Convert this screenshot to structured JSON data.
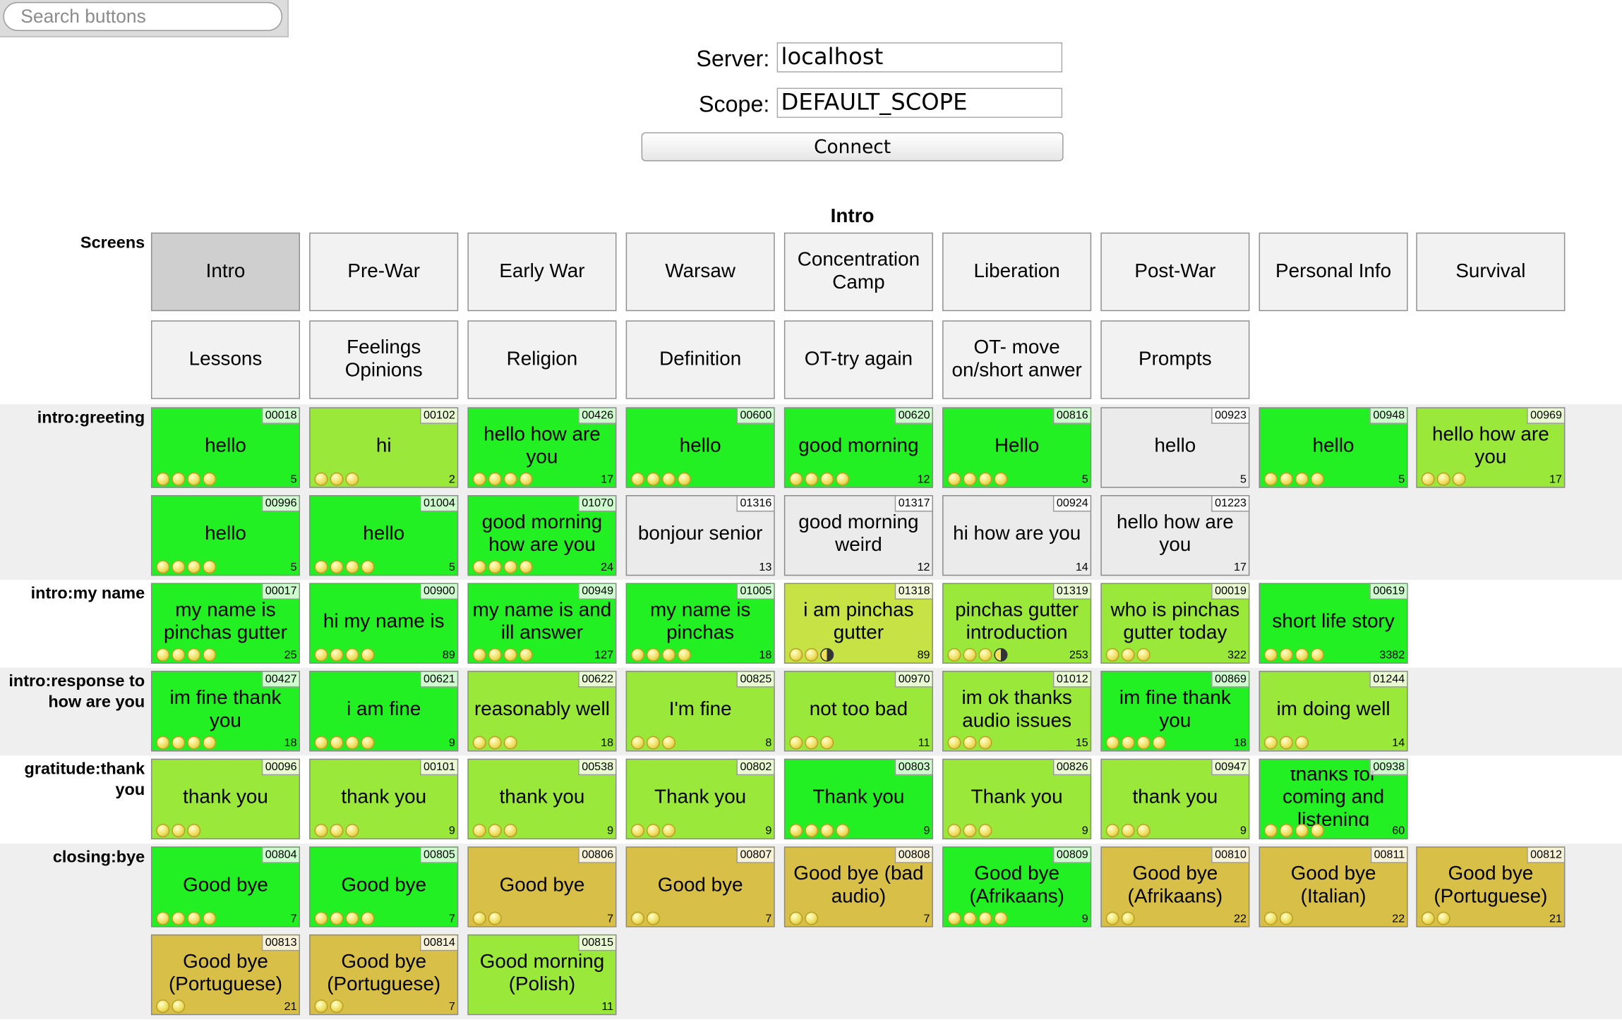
{
  "search": {
    "placeholder": "Search buttons"
  },
  "connection": {
    "server_label": "Server:",
    "server_value": "localhost",
    "scope_label": "Scope:",
    "scope_value": "DEFAULT_SCOPE",
    "connect_label": "Connect"
  },
  "page_title": "Intro",
  "screens": {
    "label": "Screens",
    "active": "Intro",
    "items": [
      "Intro",
      "Pre-War",
      "Early War",
      "Warsaw",
      "Concentration Camp",
      "Liberation",
      "Post-War",
      "Personal Info",
      "Survival",
      "Lessons",
      "Feelings Opinions",
      "Religion",
      "Definition",
      "OT-try again",
      "OT- move on/short anwer",
      "Prompts"
    ]
  },
  "colors": {
    "high": "#22f022",
    "mid": "#99e83a",
    "lime": "#c6e244",
    "gold": "#d8bf48",
    "gray": "#ebebeb",
    "dot": "#f0e060"
  },
  "groups": [
    {
      "label": "intro:greeting",
      "buttons": [
        {
          "id": "00018",
          "text": "hello",
          "count": "5",
          "dots": 4,
          "color": "high"
        },
        {
          "id": "00102",
          "text": "hi",
          "count": "2",
          "dots": 3,
          "color": "mid"
        },
        {
          "id": "00426",
          "text": "hello how are you",
          "count": "17",
          "dots": 4,
          "color": "high"
        },
        {
          "id": "00600",
          "text": "hello",
          "count": "",
          "dots": 4,
          "color": "high"
        },
        {
          "id": "00620",
          "text": "good morning",
          "count": "12",
          "dots": 4,
          "color": "high"
        },
        {
          "id": "00816",
          "text": "Hello",
          "count": "5",
          "dots": 4,
          "color": "high"
        },
        {
          "id": "00923",
          "text": "hello",
          "count": "5",
          "dots": 0,
          "color": "gray"
        },
        {
          "id": "00948",
          "text": "hello",
          "count": "5",
          "dots": 4,
          "color": "high"
        },
        {
          "id": "00969",
          "text": "hello how are you",
          "count": "17",
          "dots": 3,
          "color": "mid"
        },
        {
          "id": "00996",
          "text": "hello",
          "count": "5",
          "dots": 4,
          "color": "high"
        },
        {
          "id": "01004",
          "text": "hello",
          "count": "5",
          "dots": 4,
          "color": "high"
        },
        {
          "id": "01070",
          "text": "good morning how are you",
          "count": "24",
          "dots": 4,
          "color": "high"
        },
        {
          "id": "01316",
          "text": "bonjour senior",
          "count": "13",
          "dots": 0,
          "color": "gray"
        },
        {
          "id": "01317",
          "text": "good morning weird",
          "count": "12",
          "dots": 0,
          "color": "gray"
        },
        {
          "id": "00924",
          "text": "hi how are you",
          "count": "14",
          "dots": 0,
          "color": "gray"
        },
        {
          "id": "01223",
          "text": "hello how are you",
          "count": "17",
          "dots": 0,
          "color": "gray"
        }
      ]
    },
    {
      "label": "intro:my name",
      "buttons": [
        {
          "id": "00017",
          "text": "my name is pinchas gutter",
          "count": "25",
          "dots": 4,
          "color": "high"
        },
        {
          "id": "00900",
          "text": "hi my name is",
          "count": "89",
          "dots": 4,
          "color": "high"
        },
        {
          "id": "00949",
          "text": "my name is and ill answer",
          "count": "127",
          "dots": 4,
          "color": "high"
        },
        {
          "id": "01005",
          "text": "my name is pinchas",
          "count": "18",
          "dots": 4,
          "color": "high"
        },
        {
          "id": "01318",
          "text": "i am pinchas gutter",
          "count": "89",
          "dots": 3,
          "half": true,
          "color": "lime"
        },
        {
          "id": "01319",
          "text": "pinchas gutter introduction",
          "count": "253",
          "dots": 4,
          "half": true,
          "color": "mid"
        },
        {
          "id": "00019",
          "text": "who is pinchas gutter today",
          "count": "322",
          "dots": 3,
          "color": "mid"
        },
        {
          "id": "00619",
          "text": "short life story",
          "count": "3382",
          "dots": 4,
          "color": "high"
        }
      ]
    },
    {
      "label": "intro:response to how are you",
      "buttons": [
        {
          "id": "00427",
          "text": "im fine thank you",
          "count": "18",
          "dots": 4,
          "color": "high"
        },
        {
          "id": "00621",
          "text": "i am fine",
          "count": "9",
          "dots": 4,
          "color": "high"
        },
        {
          "id": "00622",
          "text": "reasonably well",
          "count": "18",
          "dots": 3,
          "color": "mid"
        },
        {
          "id": "00825",
          "text": "I'm fine",
          "count": "8",
          "dots": 3,
          "color": "mid"
        },
        {
          "id": "00970",
          "text": "not too bad",
          "count": "11",
          "dots": 3,
          "color": "mid"
        },
        {
          "id": "01012",
          "text": "im ok thanks audio issues",
          "count": "15",
          "dots": 3,
          "color": "mid"
        },
        {
          "id": "00869",
          "text": "im fine thank you",
          "count": "18",
          "dots": 4,
          "color": "high"
        },
        {
          "id": "01244",
          "text": "im doing well",
          "count": "14",
          "dots": 3,
          "color": "mid"
        }
      ]
    },
    {
      "label": "gratitude:thank you",
      "buttons": [
        {
          "id": "00096",
          "text": "thank you",
          "count": "",
          "dots": 3,
          "color": "mid"
        },
        {
          "id": "00101",
          "text": "thank you",
          "count": "9",
          "dots": 3,
          "color": "mid"
        },
        {
          "id": "00538",
          "text": "thank you",
          "count": "9",
          "dots": 3,
          "color": "mid"
        },
        {
          "id": "00802",
          "text": "Thank you",
          "count": "9",
          "dots": 3,
          "color": "mid"
        },
        {
          "id": "00803",
          "text": "Thank you",
          "count": "9",
          "dots": 4,
          "color": "high"
        },
        {
          "id": "00826",
          "text": "Thank you",
          "count": "9",
          "dots": 3,
          "color": "mid"
        },
        {
          "id": "00947",
          "text": "thank you",
          "count": "9",
          "dots": 3,
          "color": "mid"
        },
        {
          "id": "00938",
          "text": "thanks for coming and listening",
          "count": "60",
          "dots": 4,
          "color": "high"
        }
      ]
    },
    {
      "label": "closing:bye",
      "buttons": [
        {
          "id": "00804",
          "text": "Good bye",
          "count": "7",
          "dots": 4,
          "color": "high"
        },
        {
          "id": "00805",
          "text": "Good bye",
          "count": "7",
          "dots": 4,
          "color": "high"
        },
        {
          "id": "00806",
          "text": "Good bye",
          "count": "7",
          "dots": 2,
          "color": "gold"
        },
        {
          "id": "00807",
          "text": "Good bye",
          "count": "7",
          "dots": 2,
          "color": "gold"
        },
        {
          "id": "00808",
          "text": "Good bye (bad audio)",
          "count": "7",
          "dots": 2,
          "color": "gold"
        },
        {
          "id": "00809",
          "text": "Good bye (Afrikaans)",
          "count": "9",
          "dots": 4,
          "color": "high"
        },
        {
          "id": "00810",
          "text": "Good bye (Afrikaans)",
          "count": "22",
          "dots": 2,
          "color": "gold"
        },
        {
          "id": "00811",
          "text": "Good bye (Italian)",
          "count": "22",
          "dots": 2,
          "color": "gold"
        },
        {
          "id": "00812",
          "text": "Good bye (Portuguese)",
          "count": "21",
          "dots": 2,
          "color": "gold"
        },
        {
          "id": "00813",
          "text": "Good bye (Portuguese)",
          "count": "21",
          "dots": 2,
          "color": "gold"
        },
        {
          "id": "00814",
          "text": "Good bye (Portuguese)",
          "count": "7",
          "dots": 2,
          "color": "gold"
        },
        {
          "id": "00815",
          "text": "Good morning (Polish)",
          "count": "11",
          "dots": 0,
          "color": "mid"
        }
      ]
    }
  ]
}
